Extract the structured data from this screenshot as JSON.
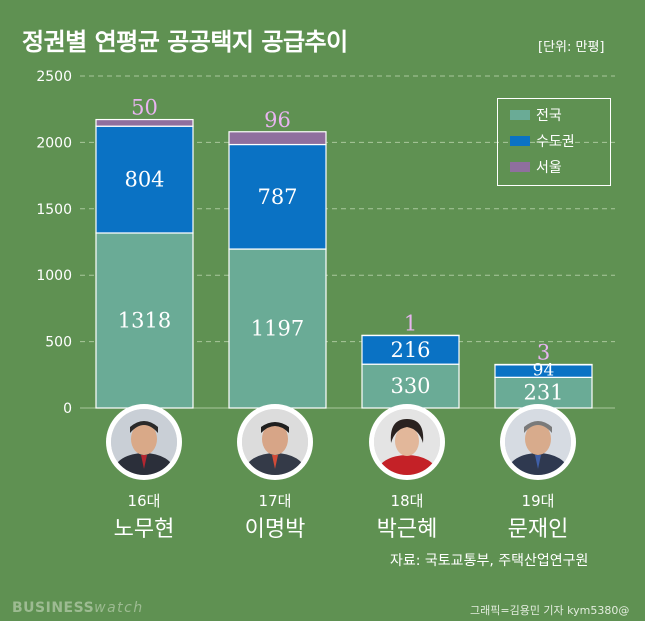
{
  "title": "정권별 연평균 공공택지 공급추이",
  "unit": "[단위: 만평]",
  "legend": [
    {
      "label": "전국",
      "color": "#6aab96"
    },
    {
      "label": "수도권",
      "color": "#0a72c4"
    },
    {
      "label": "서울",
      "color": "#8f6f9e"
    }
  ],
  "chart_data": {
    "type": "bar",
    "stacked": true,
    "categories": [
      "16대 노무현",
      "17대 이명박",
      "18대 박근혜",
      "19대 문재인"
    ],
    "series": [
      {
        "name": "전국",
        "values": [
          1318,
          1197,
          330,
          231
        ],
        "color": "#6aab96",
        "label_color": "#ffffff"
      },
      {
        "name": "수도권",
        "values": [
          804,
          787,
          216,
          94
        ],
        "color": "#0a72c4",
        "label_color": "#ffffff"
      },
      {
        "name": "서울",
        "values": [
          50,
          96,
          1,
          3
        ],
        "color": "#8f6f9e",
        "label_color": "#e8b4f0"
      }
    ],
    "ylim": [
      0,
      2500
    ],
    "yticks": [
      0,
      500,
      1000,
      1500,
      2000,
      2500
    ],
    "xlabel": "",
    "ylabel": "",
    "grid": true,
    "legend_position": "top-right"
  },
  "presidents": [
    {
      "gen": "16대",
      "name": "노무현",
      "portrait_icon": "portrait-roh-moo-hyun-icon"
    },
    {
      "gen": "17대",
      "name": "이명박",
      "portrait_icon": "portrait-lee-myung-bak-icon"
    },
    {
      "gen": "18대",
      "name": "박근혜",
      "portrait_icon": "portrait-park-geun-hye-icon"
    },
    {
      "gen": "19대",
      "name": "문재인",
      "portrait_icon": "portrait-moon-jae-in-icon"
    }
  ],
  "source": "자료: 국토교통부, 주택산업연구원",
  "brand": {
    "part1": "BUSINESS",
    "part2": "watch"
  },
  "credit": "그래픽=김용민 기자 kym5380@"
}
